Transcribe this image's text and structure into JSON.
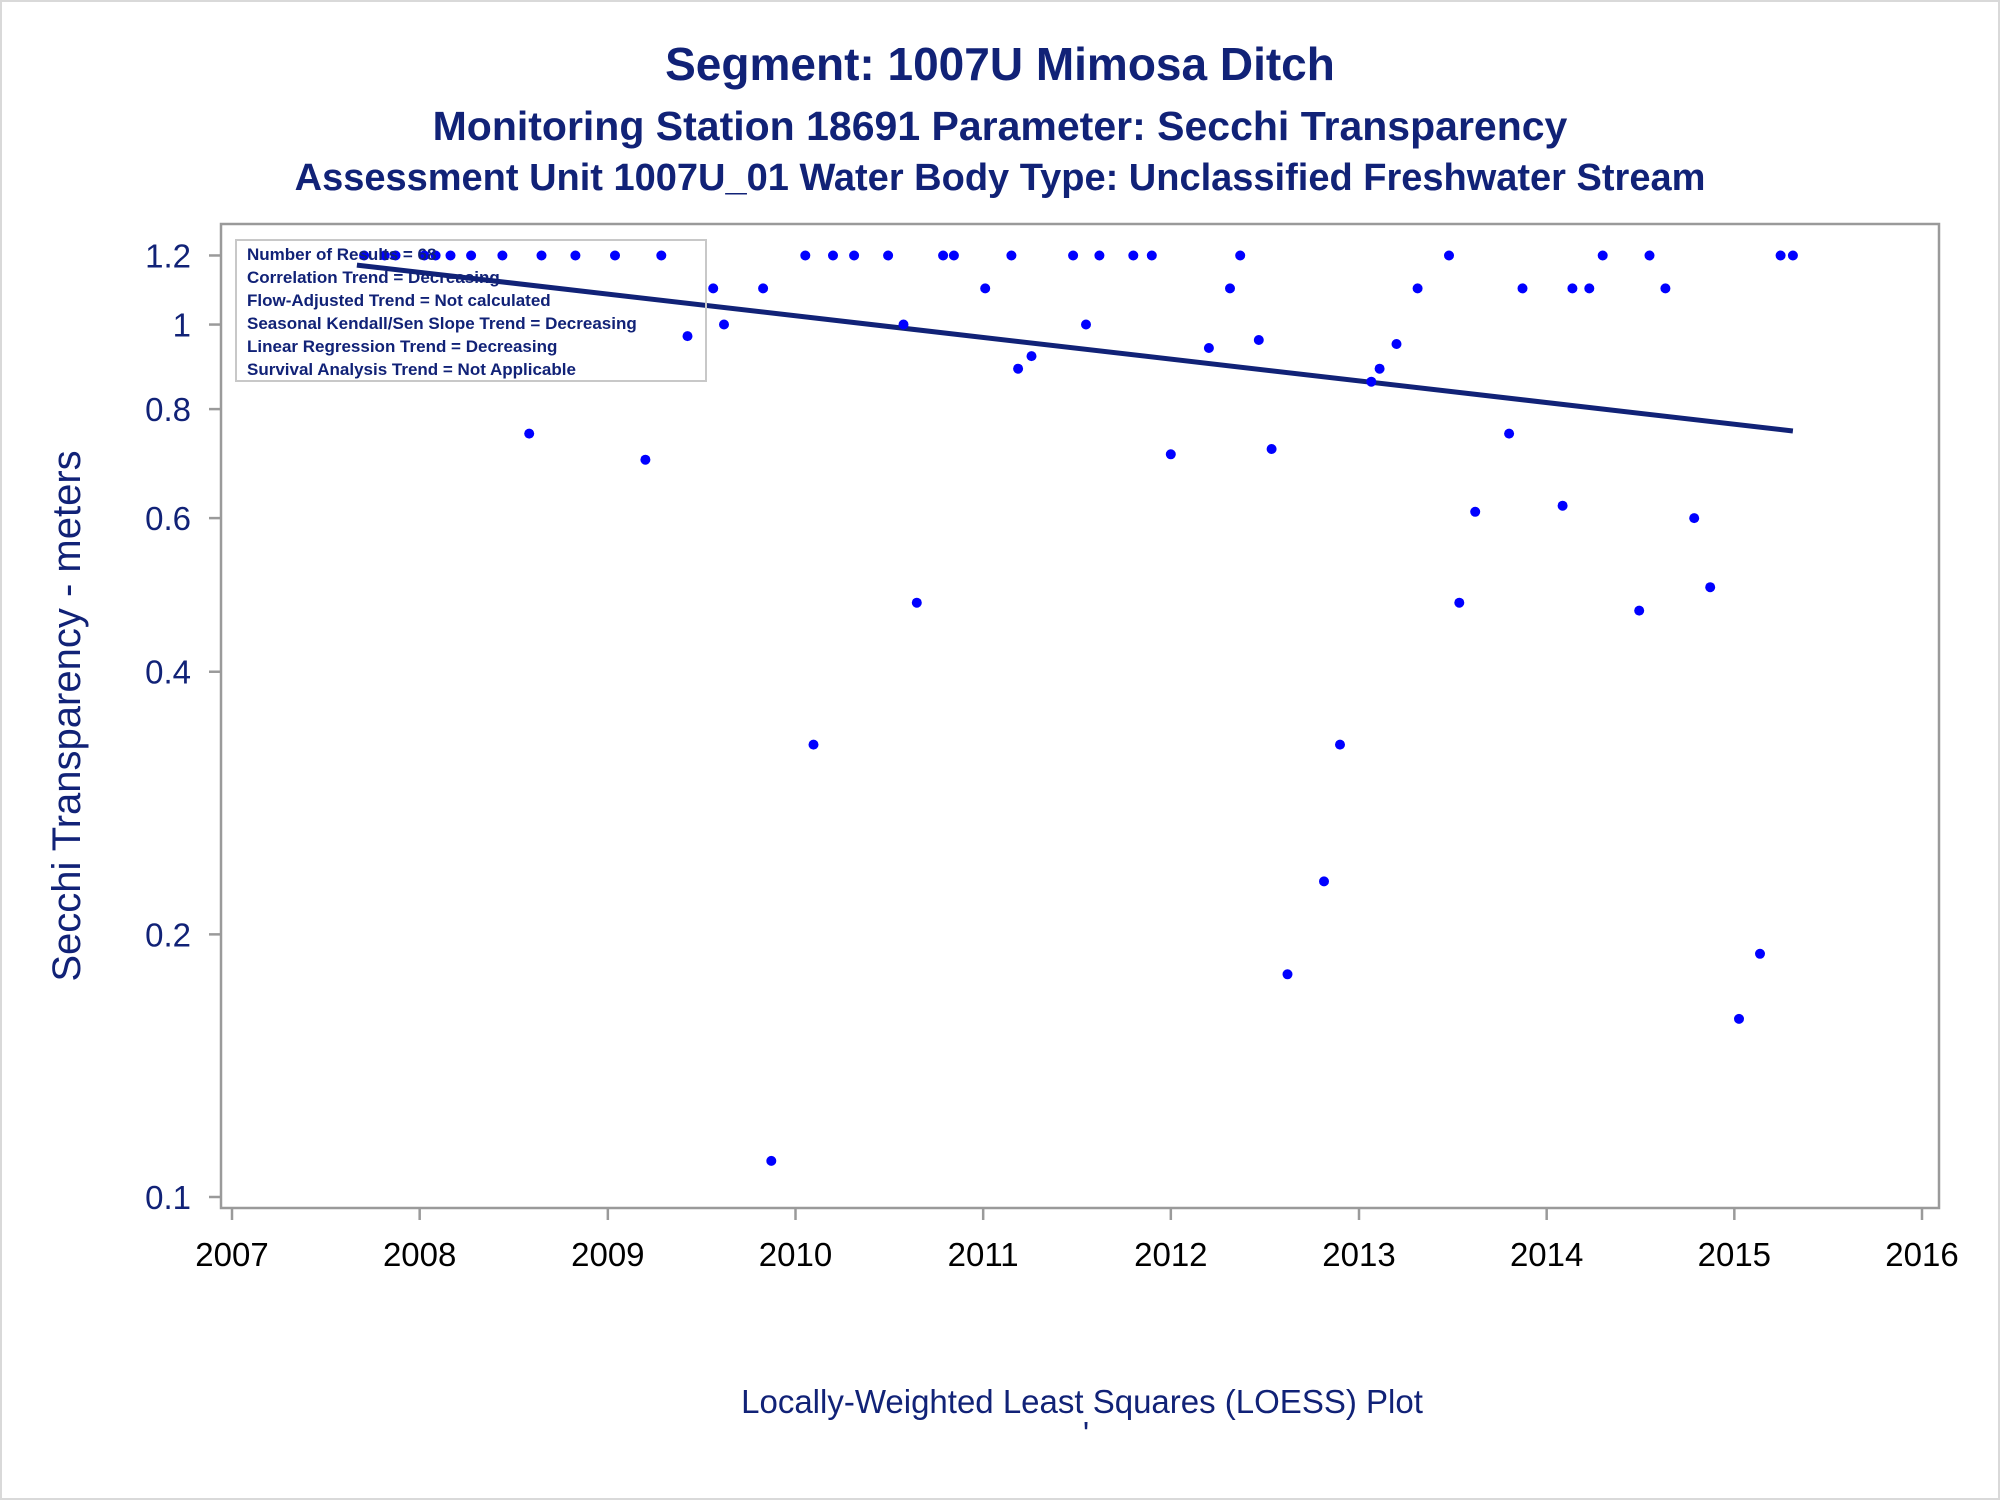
{
  "chart_data": {
    "type": "scatter",
    "title": "Segment: 1007U  Mimosa Ditch",
    "subtitle": "Monitoring Station 18691 Parameter: Secchi Transparency",
    "subtitle2": "Assessment Unit 1007U_01   Water Body Type: Unclassified Freshwater Stream",
    "xlabel": "",
    "ylabel": "Secchi Transparency - meters",
    "footnote": "Locally-Weighted Least Squares (LOESS) Plot",
    "footnote_mark": "'",
    "y_scale": "log",
    "xlim": [
      "2007-01-01",
      "2016-01-01"
    ],
    "ylim": [
      0.1,
      1.25
    ],
    "x_ticks": [
      "2007",
      "2008",
      "2009",
      "2010",
      "2011",
      "2012",
      "2013",
      "2014",
      "2015",
      "2016"
    ],
    "y_ticks": [
      "0.1",
      "0.2",
      "0.4",
      "0.6",
      "0.8",
      "1",
      "1.2"
    ],
    "grid": false,
    "legend_position": "top-left",
    "legend": [
      "Number of Results = 68",
      "Correlation Trend = Decreasing",
      "Flow-Adjusted Trend = Not calculated",
      "Seasonal Kendall/Sen Slope Trend = Decreasing",
      "Linear Regression Trend = Decreasing",
      "Survival Analysis Trend = Not Applicable"
    ],
    "series": [
      {
        "type": "scatter",
        "color": "#0000ff",
        "points": [
          {
            "x": "2007-09-15",
            "y": 1.2
          },
          {
            "x": "2007-10-25",
            "y": 1.2
          },
          {
            "x": "2007-11-15",
            "y": 1.2
          },
          {
            "x": "2008-01-10",
            "y": 1.2
          },
          {
            "x": "2008-02-01",
            "y": 1.2
          },
          {
            "x": "2008-03-01",
            "y": 1.2
          },
          {
            "x": "2008-04-10",
            "y": 1.2
          },
          {
            "x": "2008-06-10",
            "y": 1.2
          },
          {
            "x": "2008-08-01",
            "y": 0.75
          },
          {
            "x": "2008-08-25",
            "y": 1.2
          },
          {
            "x": "2008-10-30",
            "y": 1.2
          },
          {
            "x": "2009-01-15",
            "y": 1.2
          },
          {
            "x": "2009-03-15",
            "y": 0.7
          },
          {
            "x": "2009-04-15",
            "y": 1.2
          },
          {
            "x": "2009-06-05",
            "y": 0.97
          },
          {
            "x": "2009-07-25",
            "y": 1.1
          },
          {
            "x": "2009-08-15",
            "y": 1.0
          },
          {
            "x": "2009-10-30",
            "y": 1.1
          },
          {
            "x": "2009-11-15",
            "y": 0.11
          },
          {
            "x": "2010-01-20",
            "y": 1.2
          },
          {
            "x": "2010-02-05",
            "y": 0.33
          },
          {
            "x": "2010-03-15",
            "y": 1.2
          },
          {
            "x": "2010-04-25",
            "y": 1.2
          },
          {
            "x": "2010-06-30",
            "y": 1.2
          },
          {
            "x": "2010-07-30",
            "y": 1.0
          },
          {
            "x": "2010-08-25",
            "y": 0.48
          },
          {
            "x": "2010-10-15",
            "y": 1.2
          },
          {
            "x": "2010-11-05",
            "y": 1.2
          },
          {
            "x": "2011-01-05",
            "y": 1.1
          },
          {
            "x": "2011-02-25",
            "y": 1.2
          },
          {
            "x": "2011-03-10",
            "y": 0.89
          },
          {
            "x": "2011-04-05",
            "y": 0.92
          },
          {
            "x": "2011-06-25",
            "y": 1.2
          },
          {
            "x": "2011-07-20",
            "y": 1.0
          },
          {
            "x": "2011-08-15",
            "y": 1.2
          },
          {
            "x": "2011-10-20",
            "y": 1.2
          },
          {
            "x": "2011-11-25",
            "y": 1.2
          },
          {
            "x": "2012-01-01",
            "y": 0.71
          },
          {
            "x": "2012-03-15",
            "y": 0.94
          },
          {
            "x": "2012-04-25",
            "y": 1.1
          },
          {
            "x": "2012-05-15",
            "y": 1.2
          },
          {
            "x": "2012-06-20",
            "y": 0.96
          },
          {
            "x": "2012-07-15",
            "y": 0.72
          },
          {
            "x": "2012-08-15",
            "y": 0.18
          },
          {
            "x": "2012-10-25",
            "y": 0.23
          },
          {
            "x": "2012-11-25",
            "y": 0.33
          },
          {
            "x": "2013-01-25",
            "y": 0.86
          },
          {
            "x": "2013-02-10",
            "y": 0.89
          },
          {
            "x": "2013-03-15",
            "y": 0.95
          },
          {
            "x": "2013-04-25",
            "y": 1.1
          },
          {
            "x": "2013-06-25",
            "y": 1.2
          },
          {
            "x": "2013-07-15",
            "y": 0.48
          },
          {
            "x": "2013-08-15",
            "y": 0.61
          },
          {
            "x": "2013-10-20",
            "y": 0.75
          },
          {
            "x": "2013-11-15",
            "y": 1.1
          },
          {
            "x": "2014-02-01",
            "y": 0.62
          },
          {
            "x": "2014-02-20",
            "y": 1.1
          },
          {
            "x": "2014-03-25",
            "y": 1.1
          },
          {
            "x": "2014-04-20",
            "y": 1.2
          },
          {
            "x": "2014-06-30",
            "y": 0.47
          },
          {
            "x": "2014-07-20",
            "y": 1.2
          },
          {
            "x": "2014-08-20",
            "y": 1.1
          },
          {
            "x": "2014-10-15",
            "y": 0.6
          },
          {
            "x": "2014-11-15",
            "y": 0.5
          },
          {
            "x": "2015-01-10",
            "y": 0.16
          },
          {
            "x": "2015-02-20",
            "y": 0.19
          },
          {
            "x": "2015-04-01",
            "y": 1.2
          },
          {
            "x": "2015-04-25",
            "y": 1.2
          }
        ]
      },
      {
        "type": "line",
        "color": "#112277",
        "points": [
          {
            "x": "2007-09-01",
            "y": 1.17
          },
          {
            "x": "2015-04-25",
            "y": 0.755
          }
        ]
      }
    ]
  }
}
